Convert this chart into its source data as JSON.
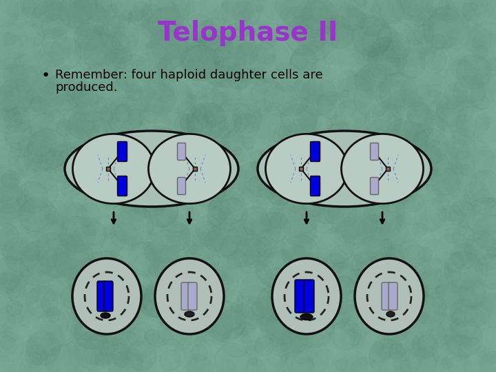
{
  "title": "Telophase II",
  "title_color": "#9933cc",
  "title_fontsize": 28,
  "title_bold": true,
  "bullet_text": "Remember: four haploid daughter cells are produced.",
  "bg_color": "#7aaa96",
  "cell_outline_color": "#111111",
  "chromosome_blue": "#0000dd",
  "chromosome_light": "#aaaacc",
  "spindle_color": "#333333",
  "dashed_color": "#6688cc",
  "nuclear_envelope_color": "#333333"
}
